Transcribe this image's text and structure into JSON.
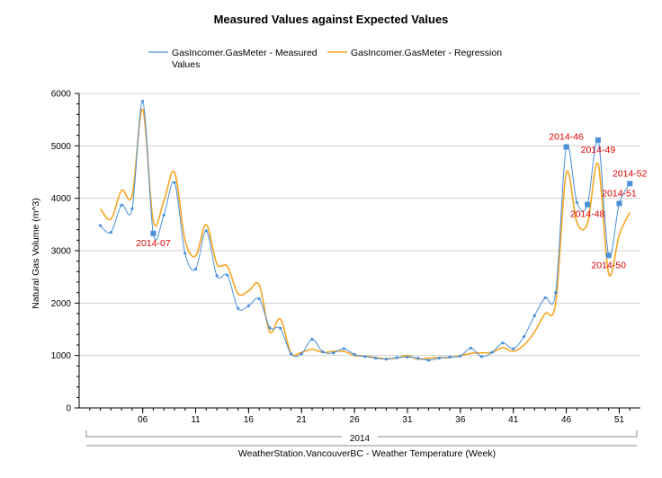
{
  "colors": {
    "measured": "#4a90d9",
    "regression": "#f5a623",
    "annotation": "#e00000",
    "grid": "#d0d0d0",
    "axis": "#000000"
  },
  "chart_data": {
    "type": "line",
    "title": "Measured Values against Expected Values",
    "xlabel": "WeatherStation.VancouverBC - Weather Temperature   (Week)",
    "ylabel": "Natural Gas Volume (m^3)",
    "group_label": "2014",
    "xlim": [
      1,
      52
    ],
    "ylim": [
      0,
      6000
    ],
    "yticks": [
      0,
      1000,
      2000,
      3000,
      4000,
      5000,
      6000
    ],
    "xticks": [
      {
        "week": 6,
        "label": "06"
      },
      {
        "week": 11,
        "label": "11"
      },
      {
        "week": 16,
        "label": "16"
      },
      {
        "week": 21,
        "label": "21"
      },
      {
        "week": 26,
        "label": "26"
      },
      {
        "week": 31,
        "label": "31"
      },
      {
        "week": 36,
        "label": "36"
      },
      {
        "week": 41,
        "label": "41"
      },
      {
        "week": 46,
        "label": "46"
      },
      {
        "week": 51,
        "label": "51"
      }
    ],
    "grid": "horizontal",
    "legend_position": "top",
    "x": [
      2,
      3,
      4,
      5,
      6,
      7,
      8,
      9,
      10,
      11,
      12,
      13,
      14,
      15,
      16,
      17,
      18,
      19,
      20,
      21,
      22,
      23,
      24,
      25,
      26,
      27,
      28,
      29,
      30,
      31,
      32,
      33,
      34,
      35,
      36,
      37,
      38,
      39,
      40,
      41,
      42,
      43,
      44,
      45,
      46,
      47,
      48,
      49,
      50,
      51,
      52
    ],
    "series": [
      {
        "name": "GasIncomer.GasMeter - Measured Values",
        "values": [
          3480,
          3350,
          3870,
          3800,
          5850,
          3330,
          3680,
          4300,
          2950,
          2650,
          3380,
          2520,
          2530,
          1900,
          1950,
          2080,
          1530,
          1520,
          1030,
          1030,
          1310,
          1070,
          1050,
          1130,
          1020,
          980,
          950,
          930,
          960,
          970,
          950,
          910,
          950,
          970,
          990,
          1140,
          980,
          1060,
          1240,
          1130,
          1360,
          1760,
          2100,
          2200,
          4980,
          3920,
          3880,
          5110,
          2910,
          3900,
          4280
        ]
      },
      {
        "name": "GasIncomer.GasMeter - Regression",
        "values": [
          3800,
          3600,
          4150,
          4050,
          5700,
          3560,
          3950,
          4500,
          3200,
          2900,
          3500,
          2750,
          2700,
          2180,
          2230,
          2350,
          1450,
          1700,
          1050,
          1060,
          1120,
          1060,
          1080,
          1080,
          1000,
          990,
          960,
          940,
          950,
          1000,
          930,
          950,
          960,
          960,
          1000,
          1040,
          1050,
          1060,
          1150,
          1080,
          1200,
          1450,
          1800,
          2000,
          4480,
          3540,
          3520,
          4660,
          2560,
          3300,
          3730
        ]
      },
      {
        "name": "",
        "type": "annotations",
        "points": [
          {
            "x": 7,
            "y": 3330,
            "label": "2014-07",
            "label_pos": "below"
          },
          {
            "x": 46,
            "y": 4980,
            "label": "2014-46",
            "label_pos": "above"
          },
          {
            "x": 48,
            "y": 3880,
            "label": "2014-48",
            "label_pos": "below"
          },
          {
            "x": 49,
            "y": 5110,
            "label": "2014-49",
            "label_pos": "below"
          },
          {
            "x": 50,
            "y": 2910,
            "label": "2014-50",
            "label_pos": "below"
          },
          {
            "x": 51,
            "y": 3900,
            "label": "2014-51",
            "label_pos": "above"
          },
          {
            "x": 52,
            "y": 4280,
            "label": "2014-52",
            "label_pos": "above"
          }
        ]
      }
    ]
  }
}
